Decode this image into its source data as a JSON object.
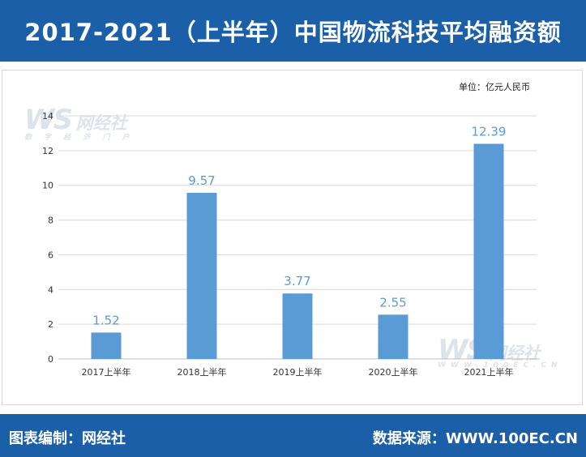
{
  "header": {
    "title": "2017-2021（上半年）中国物流科技平均融资额"
  },
  "unit_label": "单位：亿元人民币",
  "footer": {
    "left": "图表编制：网经社",
    "right": "数据来源：WWW.100EC.CN"
  },
  "watermark": {
    "logo": "WS",
    "name": "网经社",
    "site": "WWW.100EC.CN",
    "tagline": "数 字 经 济 门 户"
  },
  "chart_data": {
    "type": "bar",
    "title": "2017-2021（上半年）中国物流科技平均融资额",
    "categories": [
      "2017上半年",
      "2018上半年",
      "2019上半年",
      "2020上半年",
      "2021上半年"
    ],
    "values": [
      1.52,
      9.57,
      3.77,
      2.55,
      12.39
    ],
    "ylim": [
      0,
      14
    ],
    "yticks": [
      0,
      2,
      4,
      6,
      8,
      10,
      12,
      14
    ],
    "grid": true,
    "bar_color": "#5b9bd5",
    "label_color": "#5b9bd5"
  }
}
